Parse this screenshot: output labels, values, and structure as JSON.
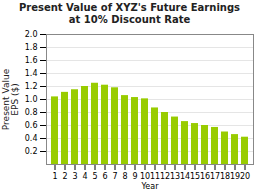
{
  "chart_data": {
    "type": "bar",
    "title": "Present Value of XYZ's Future Earnings\nat 10% Discount Rate",
    "x_label": "Year",
    "y_label": "Present Value\nEPS ($)",
    "categories": [
      "1",
      "2",
      "3",
      "4",
      "5",
      "6",
      "7",
      "8",
      "9",
      "10",
      "11",
      "12",
      "13",
      "14",
      "15",
      "16",
      "17",
      "18",
      "19",
      "20"
    ],
    "values": [
      1.04,
      1.11,
      1.15,
      1.2,
      1.25,
      1.22,
      1.18,
      1.06,
      1.03,
      1.01,
      0.87,
      0.8,
      0.73,
      0.66,
      0.63,
      0.6,
      0.57,
      0.5,
      0.46,
      0.42
    ],
    "color": "#99cc00",
    "ylim": [
      0,
      2.0
    ],
    "yticks": [
      0.2,
      0.4,
      0.6,
      0.8,
      {
        "value": 1.0,
        "label": "1.0"
      },
      1.2,
      1.4,
      1.6,
      1.8,
      {
        "value": 2.0,
        "label": "2.0"
      }
    ],
    "grid": true
  }
}
